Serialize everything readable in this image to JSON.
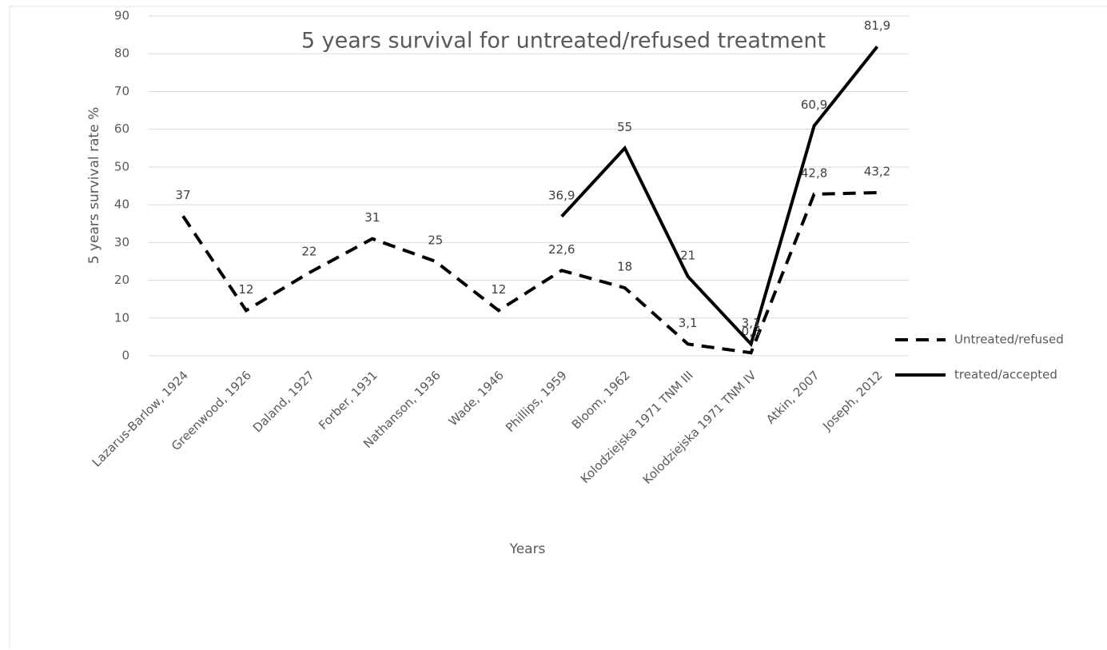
{
  "chart_data": {
    "type": "line",
    "title": "5 years survival for untreated/refused treatment",
    "x_label": "Years",
    "y_label": "5 years survival rate %",
    "categories": [
      "Lazarus-Barlow, 1924",
      "Greenwood, 1926",
      "Daland, 1927",
      "Forber, 1931",
      "Nathanson, 1936",
      "Wade, 1946",
      "Phillips, 1959",
      "Bloom, 1962",
      "Kolodziejska 1971 TNM III",
      "Kolodziejska 1971 TNM IV",
      "Atkin, 2007",
      "Joseph, 2012"
    ],
    "series": [
      {
        "name": "Untreated/refused",
        "color": "#000000",
        "line_style": "dashed",
        "values": [
          37,
          12,
          22,
          31,
          25,
          12,
          22.6,
          18,
          3.1,
          0.8,
          42.8,
          43.2
        ],
        "value_labels": [
          "37",
          "12",
          "22",
          "31",
          "25",
          "12",
          "22,6",
          "18",
          "3,1",
          "0,8",
          "42,8",
          "43,2"
        ]
      },
      {
        "name": "treated/accepted",
        "color": "#000000",
        "line_style": "solid",
        "values": [
          null,
          null,
          null,
          null,
          null,
          null,
          36.9,
          55,
          21,
          3.1,
          60.9,
          81.9
        ],
        "value_labels": [
          null,
          null,
          null,
          null,
          null,
          null,
          "36,9",
          "55",
          "21",
          "3,1",
          "60,9",
          "81,9"
        ]
      }
    ],
    "ylim": [
      0,
      90
    ],
    "yticks": [
      0,
      10,
      20,
      30,
      40,
      50,
      60,
      70,
      80,
      90
    ],
    "grid": true,
    "legend": "right"
  }
}
